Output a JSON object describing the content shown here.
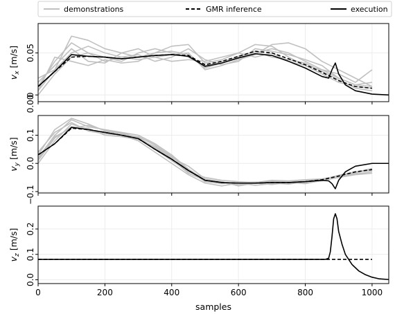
{
  "chart_data": {
    "type": "line",
    "legend": {
      "placement": "top",
      "entries": [
        {
          "label": "demonstrations",
          "style": "solid",
          "color": "#c0c0c0"
        },
        {
          "label": "GMR inference",
          "style": "dashed",
          "color": "#000000"
        },
        {
          "label": "execution",
          "style": "solid",
          "color": "#000000"
        }
      ]
    },
    "xlabel": "samples",
    "xlim": [
      0,
      1050
    ],
    "xticks": [
      0,
      200,
      400,
      600,
      800,
      1000
    ],
    "grid": true,
    "panels": [
      {
        "name": "vx",
        "ylabel_main": "v",
        "ylabel_sub": "x",
        "ylabel_unit": " [m/s]",
        "ylim": [
          -0.008,
          0.085
        ],
        "yticks": [
          0.0,
          0.05
        ],
        "ytick_labels": [
          "0",
          "0.05"
        ],
        "extra_tick_label": "0.00",
        "demonstrations": [
          {
            "x": [
              0,
              50,
              100,
              150,
              200,
              250,
              300,
              350,
              400,
              450,
              500,
              550,
              600,
              650,
              700,
              750,
              800,
              850,
              900,
              950,
              1000
            ],
            "y": [
              0.005,
              0.03,
              0.07,
              0.065,
              0.055,
              0.05,
              0.045,
              0.05,
              0.058,
              0.06,
              0.038,
              0.042,
              0.05,
              0.06,
              0.058,
              0.045,
              0.035,
              0.025,
              0.015,
              0.01,
              0.008
            ]
          },
          {
            "x": [
              0,
              50,
              100,
              150,
              200,
              250,
              300,
              350,
              400,
              450,
              500,
              550,
              600,
              650,
              700,
              750,
              800,
              850,
              900,
              950,
              1000
            ],
            "y": [
              0.01,
              0.04,
              0.062,
              0.05,
              0.045,
              0.04,
              0.05,
              0.055,
              0.05,
              0.045,
              0.035,
              0.04,
              0.045,
              0.05,
              0.055,
              0.05,
              0.04,
              0.03,
              0.02,
              0.012,
              0.01
            ]
          },
          {
            "x": [
              0,
              50,
              100,
              150,
              200,
              250,
              300,
              350,
              400,
              450,
              500,
              550,
              600,
              650,
              700,
              750,
              800,
              850,
              900,
              950,
              1000
            ],
            "y": [
              0.0,
              0.025,
              0.045,
              0.05,
              0.04,
              0.045,
              0.042,
              0.045,
              0.048,
              0.05,
              0.03,
              0.035,
              0.042,
              0.048,
              0.06,
              0.062,
              0.055,
              0.04,
              0.03,
              0.02,
              0.01
            ]
          },
          {
            "x": [
              0,
              50,
              100,
              150,
              200,
              250,
              300,
              350,
              400,
              450,
              500,
              550,
              600,
              650,
              700,
              750,
              800,
              850,
              900,
              950,
              1000
            ],
            "y": [
              0.015,
              0.035,
              0.055,
              0.04,
              0.038,
              0.05,
              0.055,
              0.045,
              0.04,
              0.042,
              0.04,
              0.045,
              0.05,
              0.045,
              0.05,
              0.04,
              0.035,
              0.03,
              0.025,
              0.015,
              0.03
            ]
          },
          {
            "x": [
              0,
              50,
              100,
              150,
              200,
              250,
              300,
              350,
              400,
              450,
              500,
              550,
              600,
              650,
              700,
              750,
              800,
              850,
              900,
              950,
              1000
            ],
            "y": [
              0.005,
              0.045,
              0.04,
              0.035,
              0.042,
              0.038,
              0.04,
              0.05,
              0.052,
              0.048,
              0.032,
              0.038,
              0.046,
              0.052,
              0.045,
              0.042,
              0.038,
              0.028,
              0.018,
              0.008,
              0.005
            ]
          },
          {
            "x": [
              0,
              50,
              100,
              150,
              200,
              250,
              300,
              350,
              400,
              450,
              500,
              550,
              600,
              650,
              700,
              750,
              800,
              850,
              900,
              950,
              1000
            ],
            "y": [
              0.02,
              0.03,
              0.05,
              0.058,
              0.05,
              0.045,
              0.048,
              0.04,
              0.045,
              0.055,
              0.042,
              0.036,
              0.04,
              0.055,
              0.052,
              0.048,
              0.042,
              0.035,
              0.02,
              0.012,
              0.015
            ]
          }
        ],
        "gmr": {
          "x": [
            0,
            50,
            100,
            150,
            200,
            250,
            300,
            350,
            400,
            450,
            500,
            550,
            600,
            650,
            700,
            750,
            800,
            850,
            900,
            950,
            1000
          ],
          "y": [
            0.01,
            0.028,
            0.045,
            0.046,
            0.045,
            0.043,
            0.045,
            0.047,
            0.048,
            0.047,
            0.036,
            0.04,
            0.046,
            0.052,
            0.05,
            0.043,
            0.036,
            0.027,
            0.017,
            0.01,
            0.008
          ]
        },
        "execution": {
          "x": [
            0,
            50,
            100,
            150,
            200,
            250,
            300,
            350,
            400,
            450,
            500,
            550,
            600,
            650,
            700,
            750,
            800,
            850,
            870,
            880,
            890,
            900,
            920,
            950,
            1000,
            1050
          ],
          "y": [
            0.01,
            0.028,
            0.048,
            0.046,
            0.045,
            0.043,
            0.045,
            0.047,
            0.048,
            0.046,
            0.034,
            0.038,
            0.044,
            0.049,
            0.047,
            0.04,
            0.032,
            0.022,
            0.02,
            0.03,
            0.038,
            0.025,
            0.012,
            0.005,
            0.001,
            0.0
          ]
        }
      },
      {
        "name": "vy",
        "ylabel_main": "v",
        "ylabel_sub": "y",
        "ylabel_unit": " [m/s]",
        "ylim": [
          -0.105,
          0.17
        ],
        "yticks": [
          -0.1,
          0.0,
          0.1
        ],
        "ytick_labels": [
          "0.1",
          "0.0",
          "0.1"
        ],
        "extra_tick_label": "−",
        "demonstrations": [
          {
            "x": [
              0,
              50,
              100,
              150,
              200,
              250,
              300,
              350,
              400,
              450,
              500,
              550,
              600,
              650,
              700,
              750,
              800,
              850,
              900,
              950,
              1000
            ],
            "y": [
              0.02,
              0.1,
              0.155,
              0.13,
              0.12,
              0.11,
              0.1,
              0.07,
              0.03,
              -0.02,
              -0.06,
              -0.07,
              -0.075,
              -0.07,
              -0.065,
              -0.07,
              -0.065,
              -0.06,
              -0.05,
              -0.04,
              -0.035
            ]
          },
          {
            "x": [
              0,
              50,
              100,
              150,
              200,
              250,
              300,
              350,
              400,
              450,
              500,
              550,
              600,
              650,
              700,
              750,
              800,
              850,
              900,
              950,
              1000
            ],
            "y": [
              0.0,
              0.08,
              0.14,
              0.12,
              0.11,
              0.1,
              0.08,
              0.04,
              0.0,
              -0.04,
              -0.07,
              -0.08,
              -0.07,
              -0.078,
              -0.072,
              -0.068,
              -0.07,
              -0.062,
              -0.048,
              -0.03,
              -0.025
            ]
          },
          {
            "x": [
              0,
              50,
              100,
              150,
              200,
              250,
              300,
              350,
              400,
              450,
              500,
              550,
              600,
              650,
              700,
              750,
              800,
              850,
              900,
              950,
              1000
            ],
            "y": [
              0.03,
              0.12,
              0.16,
              0.14,
              0.115,
              0.105,
              0.09,
              0.05,
              0.01,
              -0.03,
              -0.05,
              -0.06,
              -0.065,
              -0.068,
              -0.06,
              -0.062,
              -0.058,
              -0.055,
              -0.045,
              -0.035,
              -0.02
            ]
          },
          {
            "x": [
              0,
              50,
              100,
              150,
              200,
              250,
              300,
              350,
              400,
              450,
              500,
              550,
              600,
              650,
              700,
              750,
              800,
              850,
              900,
              950,
              1000
            ],
            "y": [
              0.01,
              0.09,
              0.13,
              0.125,
              0.1,
              0.095,
              0.085,
              0.06,
              0.02,
              -0.01,
              -0.055,
              -0.065,
              -0.08,
              -0.07,
              -0.075,
              -0.068,
              -0.072,
              -0.06,
              -0.05,
              -0.038,
              -0.03
            ]
          },
          {
            "x": [
              0,
              50,
              100,
              150,
              200,
              250,
              300,
              350,
              400,
              450,
              500,
              550,
              600,
              650,
              700,
              750,
              800,
              850,
              900,
              950,
              1000
            ],
            "y": [
              0.04,
              0.11,
              0.145,
              0.115,
              0.105,
              0.1,
              0.095,
              0.065,
              0.025,
              -0.025,
              -0.065,
              -0.072,
              -0.068,
              -0.066,
              -0.07,
              -0.074,
              -0.064,
              -0.058,
              -0.042,
              -0.03,
              -0.022
            ]
          },
          {
            "x": [
              0,
              50,
              100,
              150,
              200,
              250,
              300,
              350,
              400,
              450,
              500,
              550,
              600,
              650,
              700,
              750,
              800,
              850,
              900,
              950,
              1000
            ],
            "y": [
              0.015,
              0.095,
              0.125,
              0.135,
              0.118,
              0.108,
              0.092,
              0.055,
              0.015,
              -0.035,
              -0.06,
              -0.068,
              -0.07,
              -0.072,
              -0.064,
              -0.066,
              -0.062,
              -0.056,
              -0.044,
              -0.032,
              -0.018
            ]
          }
        ],
        "gmr": {
          "x": [
            0,
            50,
            100,
            150,
            200,
            250,
            300,
            350,
            400,
            450,
            500,
            550,
            600,
            650,
            700,
            750,
            800,
            850,
            900,
            950,
            1000
          ],
          "y": [
            0.03,
            0.07,
            0.125,
            0.12,
            0.11,
            0.1,
            0.088,
            0.05,
            0.015,
            -0.025,
            -0.06,
            -0.068,
            -0.07,
            -0.07,
            -0.068,
            -0.068,
            -0.065,
            -0.058,
            -0.045,
            -0.03,
            -0.022
          ]
        },
        "execution": {
          "x": [
            0,
            50,
            100,
            150,
            200,
            250,
            300,
            350,
            400,
            450,
            500,
            550,
            600,
            650,
            700,
            750,
            800,
            850,
            870,
            880,
            890,
            900,
            920,
            950,
            1000,
            1050
          ],
          "y": [
            0.03,
            0.07,
            0.128,
            0.12,
            0.11,
            0.1,
            0.088,
            0.05,
            0.015,
            -0.025,
            -0.06,
            -0.068,
            -0.07,
            -0.07,
            -0.068,
            -0.068,
            -0.065,
            -0.06,
            -0.062,
            -0.072,
            -0.09,
            -0.06,
            -0.03,
            -0.01,
            0.0,
            0.0
          ]
        }
      },
      {
        "name": "vz",
        "ylabel_main": "v",
        "ylabel_sub": "z",
        "ylabel_unit": " [m/s]",
        "ylim": [
          -0.015,
          0.29
        ],
        "yticks": [
          0.0,
          0.1,
          0.2
        ],
        "ytick_labels": [
          "0.0",
          "0.1",
          "0.2"
        ],
        "extra_tick_label": "",
        "demonstrations": [],
        "gmr": {
          "x": [
            0,
            100,
            200,
            300,
            400,
            500,
            600,
            700,
            800,
            900,
            1000
          ],
          "y": [
            0.08,
            0.08,
            0.08,
            0.08,
            0.08,
            0.08,
            0.08,
            0.08,
            0.08,
            0.08,
            0.08
          ]
        },
        "execution": {
          "x": [
            0,
            100,
            200,
            300,
            400,
            500,
            600,
            700,
            800,
            860,
            870,
            875,
            880,
            885,
            890,
            895,
            900,
            910,
            920,
            940,
            960,
            980,
            1000,
            1020,
            1050
          ],
          "y": [
            0.08,
            0.08,
            0.08,
            0.08,
            0.08,
            0.08,
            0.08,
            0.08,
            0.08,
            0.08,
            0.085,
            0.11,
            0.17,
            0.24,
            0.26,
            0.24,
            0.19,
            0.14,
            0.1,
            0.06,
            0.035,
            0.02,
            0.01,
            0.004,
            0.001
          ]
        }
      }
    ]
  }
}
